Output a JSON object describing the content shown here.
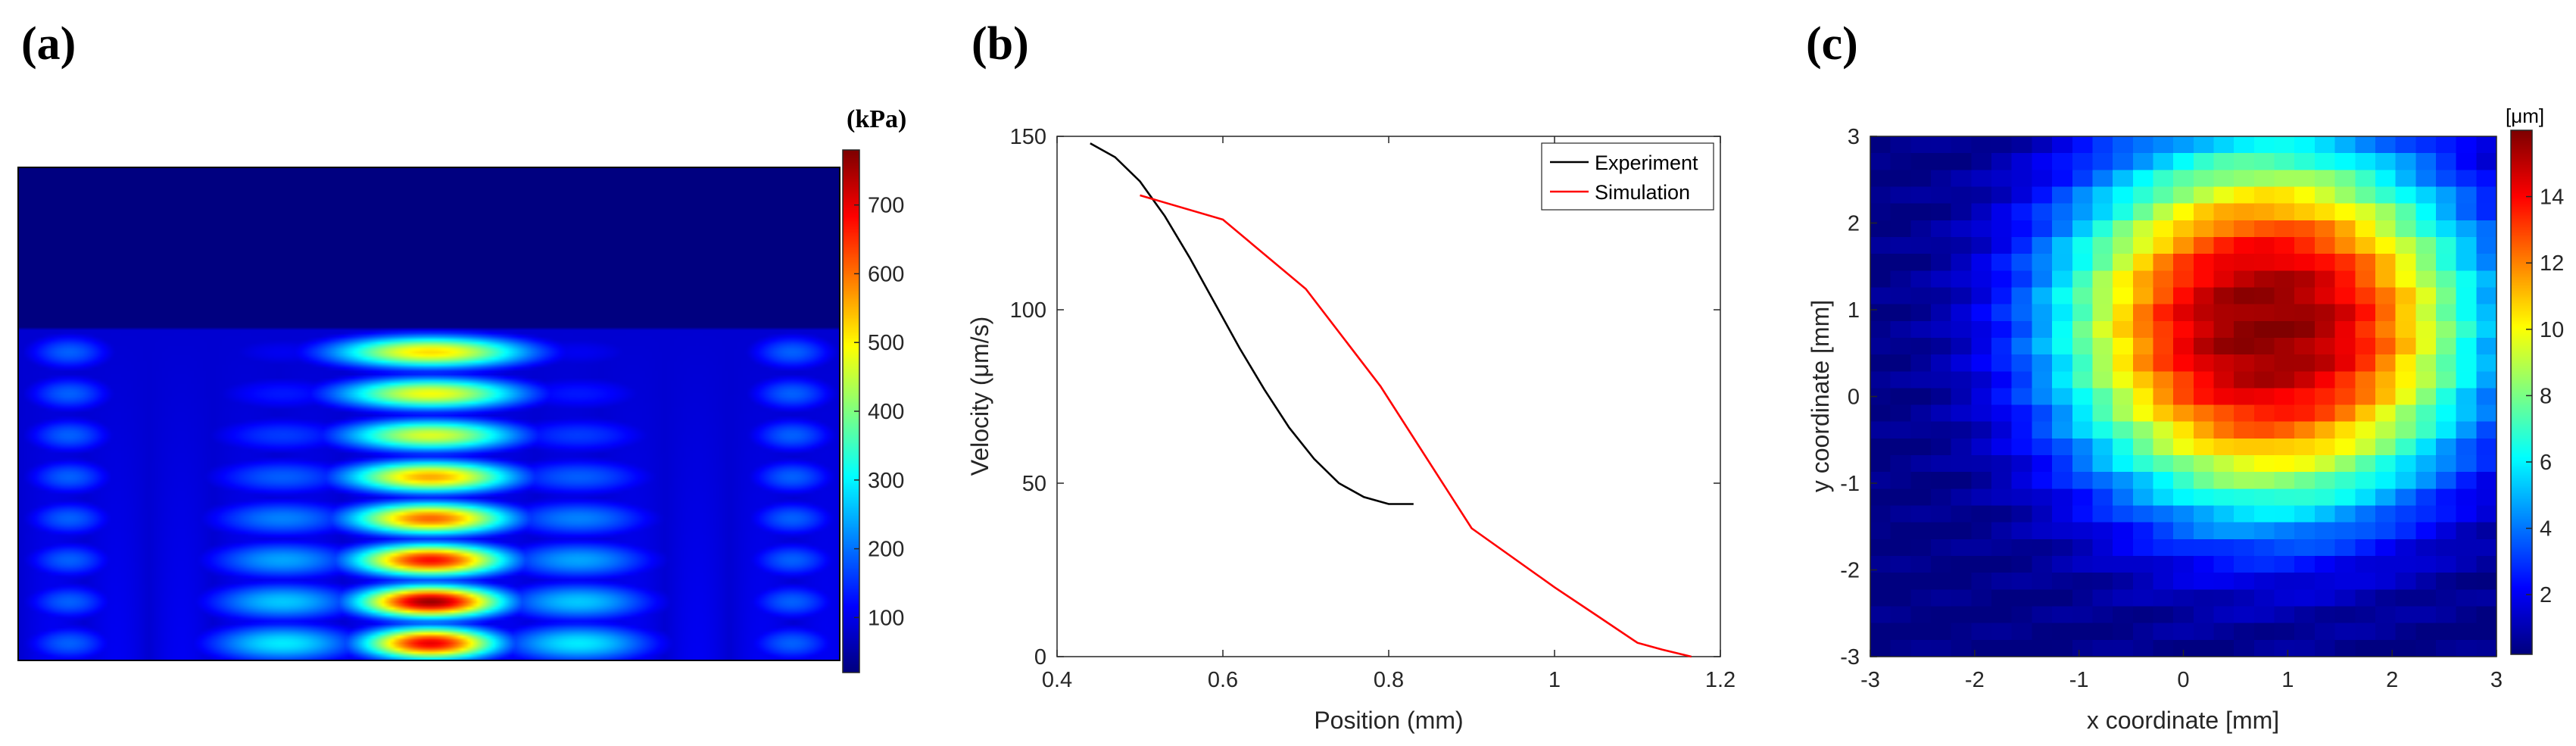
{
  "chart_data": [
    {
      "panel": "(a)",
      "type": "heatmap",
      "title": "",
      "colorbar": {
        "unit": "(kPa)",
        "ticks": [
          100,
          200,
          300,
          400,
          500,
          600,
          700
        ],
        "range": [
          20,
          780
        ]
      },
      "description_free": true,
      "foci": [
        {
          "row": 1,
          "peak": 520
        },
        {
          "row": 2,
          "peak": 490
        },
        {
          "row": 3,
          "peak": 470
        },
        {
          "row": 4,
          "peak": 560
        },
        {
          "row": 5,
          "peak": 610
        },
        {
          "row": 6,
          "peak": 680
        },
        {
          "row": 7,
          "peak": 760
        },
        {
          "row": 8,
          "peak": 700
        }
      ]
    },
    {
      "panel": "(b)",
      "type": "line",
      "xlabel": "Position (mm)",
      "ylabel": "Velocity (μm/s)",
      "xlim": [
        0.4,
        1.2
      ],
      "ylim": [
        0,
        150
      ],
      "xticks": [
        "0.4",
        "0.6",
        "0.8",
        "1",
        "1.2"
      ],
      "yticks": [
        "0",
        "50",
        "100",
        "150"
      ],
      "legend_position": "top-right",
      "series": [
        {
          "name": "Experiment",
          "color": "#000000",
          "x": [
            0.44,
            0.47,
            0.5,
            0.53,
            0.56,
            0.59,
            0.62,
            0.65,
            0.68,
            0.71,
            0.74,
            0.77,
            0.8,
            0.82,
            0.83
          ],
          "y": [
            148,
            144,
            137,
            127,
            115,
            102,
            89,
            77,
            66,
            57,
            50,
            46,
            44,
            44,
            44
          ]
        },
        {
          "name": "Simulation",
          "color": "#ff0000",
          "x": [
            0.5,
            0.6,
            0.7,
            0.79,
            0.9,
            1.0,
            1.05,
            1.1,
            1.13,
            1.165
          ],
          "y": [
            133,
            126,
            106,
            78,
            37,
            20,
            12,
            4,
            2,
            0
          ]
        }
      ]
    },
    {
      "panel": "(c)",
      "type": "heatmap",
      "xlabel": "x coordinate [mm]",
      "ylabel": "y coordinate [mm]",
      "xlim": [
        -3,
        3
      ],
      "ylim": [
        -3,
        3
      ],
      "xticks": [
        "-3",
        "-2",
        "-1",
        "0",
        "1",
        "2",
        "3"
      ],
      "yticks": [
        "-3",
        "-2",
        "-1",
        "0",
        "1",
        "2",
        "3"
      ],
      "grid_size": 31,
      "colorbar": {
        "unit": "[μm]",
        "ticks": [
          2,
          4,
          6,
          8,
          10,
          12,
          14
        ],
        "range": [
          0.2,
          16
        ]
      },
      "peak": {
        "x": 0.8,
        "y": 0.8,
        "value": 15.8
      }
    }
  ]
}
